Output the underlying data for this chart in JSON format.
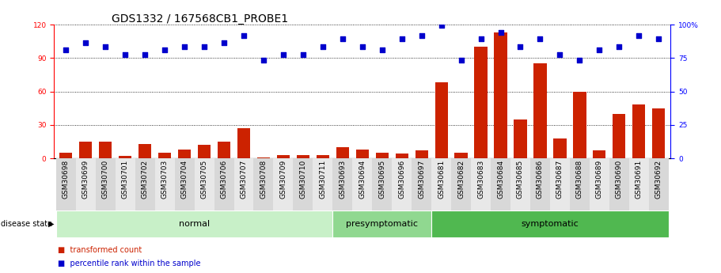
{
  "title": "GDS1332 / 167568CB1_PROBE1",
  "samples": [
    "GSM30698",
    "GSM30699",
    "GSM30700",
    "GSM30701",
    "GSM30702",
    "GSM30703",
    "GSM30704",
    "GSM30705",
    "GSM30706",
    "GSM30707",
    "GSM30708",
    "GSM30709",
    "GSM30710",
    "GSM30711",
    "GSM30693",
    "GSM30694",
    "GSM30695",
    "GSM30696",
    "GSM30697",
    "GSM30681",
    "GSM30682",
    "GSM30683",
    "GSM30684",
    "GSM30685",
    "GSM30686",
    "GSM30687",
    "GSM30688",
    "GSM30689",
    "GSM30690",
    "GSM30691",
    "GSM30692"
  ],
  "bar_values": [
    5,
    15,
    15,
    2,
    13,
    5,
    8,
    12,
    15,
    27,
    1,
    3,
    3,
    3,
    10,
    8,
    5,
    4,
    7,
    68,
    5,
    100,
    113,
    35,
    85,
    18,
    60,
    7,
    40,
    48,
    45
  ],
  "dot_values": [
    97,
    104,
    100,
    93,
    93,
    97,
    100,
    100,
    104,
    110,
    88,
    93,
    93,
    100,
    107,
    100,
    97,
    107,
    110,
    119,
    88,
    107,
    113,
    100,
    107,
    93,
    88,
    97,
    100,
    110,
    107
  ],
  "groups": [
    {
      "label": "normal",
      "start": 0,
      "end": 14,
      "color": "#c8f0c8"
    },
    {
      "label": "presymptomatic",
      "start": 14,
      "end": 19,
      "color": "#90d890"
    },
    {
      "label": "symptomatic",
      "start": 19,
      "end": 31,
      "color": "#50b850"
    }
  ],
  "left_ylim": [
    0,
    120
  ],
  "left_yticks": [
    0,
    30,
    60,
    90,
    120
  ],
  "right_ylim": [
    0,
    100
  ],
  "right_yticks": [
    0,
    25,
    50,
    75,
    100
  ],
  "bar_color": "#cc2200",
  "dot_color": "#0000cc",
  "bg_color": "#ffffff",
  "plot_bg": "#ffffff",
  "grid_color": "#000000",
  "title_fontsize": 10,
  "tick_fontsize": 6.5,
  "label_fontsize": 8,
  "group_label_fontsize": 8
}
